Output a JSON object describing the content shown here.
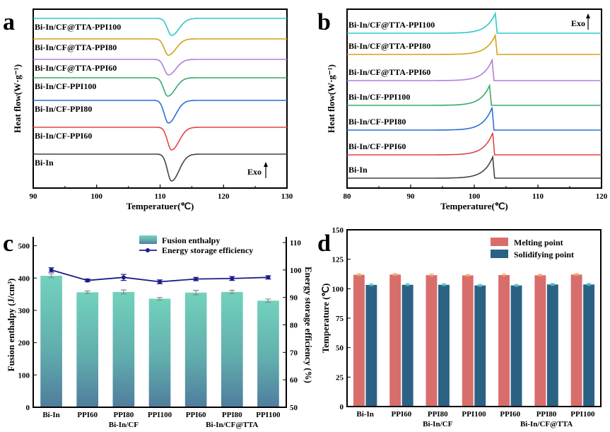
{
  "chart_data": [
    {
      "type": "line",
      "panel": "a",
      "title": "",
      "xlabel": "Temperatuer(℃)",
      "ylabel": "Heat flow(W·g⁻¹)",
      "xlim": [
        90,
        130
      ],
      "xticks": [
        "90",
        "100",
        "110",
        "120",
        "130"
      ],
      "annotation": "Exo",
      "series": [
        {
          "name": "Bi-In/CF@TTA-PPI100",
          "color": "#2ec8c8",
          "peak_T": 111.8
        },
        {
          "name": "Bi-In/CF@TTA-PPI80",
          "color": "#d4a21a",
          "peak_T": 111.3
        },
        {
          "name": "Bi-In/CF@TTA-PPI60",
          "color": "#b07ee0",
          "peak_T": 111.3
        },
        {
          "name": "Bi-In/CF-PPI100",
          "color": "#3aa86a",
          "peak_T": 111.2
        },
        {
          "name": "Bi-In/CF-PPI80",
          "color": "#2a6fd8",
          "peak_T": 111.3
        },
        {
          "name": "Bi-In/CF-PPI60",
          "color": "#e04444",
          "peak_T": 111.8
        },
        {
          "name": "Bi-In",
          "color": "#444444",
          "peak_T": 111.8
        }
      ]
    },
    {
      "type": "line",
      "panel": "b",
      "title": "",
      "xlabel": "Temperature(℃)",
      "ylabel": "Heat flow(W·g⁻¹)",
      "xlim": [
        80,
        120
      ],
      "xticks": [
        "80",
        "90",
        "100",
        "110",
        "120"
      ],
      "annotation": "Exo",
      "series": [
        {
          "name": "Bi-In/CF@TTA-PPI100",
          "color": "#2ec8c8",
          "peak_T": 103.3
        },
        {
          "name": "Bi-In/CF@TTA-PPI80",
          "color": "#d4a21a",
          "peak_T": 103.3
        },
        {
          "name": "Bi-In/CF@TTA-PPI60",
          "color": "#b07ee0",
          "peak_T": 102.8
        },
        {
          "name": "Bi-In/CF-PPI100",
          "color": "#3aa86a",
          "peak_T": 102.4
        },
        {
          "name": "Bi-In/CF-PPI80",
          "color": "#2a6fd8",
          "peak_T": 102.8
        },
        {
          "name": "Bi-In/CF-PPI60",
          "color": "#e04444",
          "peak_T": 102.9
        },
        {
          "name": "Bi-In",
          "color": "#444444",
          "peak_T": 102.9
        }
      ]
    },
    {
      "type": "bar",
      "panel": "c",
      "categories": [
        "Bi-In",
        "PPI60",
        "PPI80",
        "PPI100",
        "PPI60",
        "PPI80",
        "PPI100"
      ],
      "groups": [
        {
          "label": "Bi-In/CF",
          "center_index": 2
        },
        {
          "label": "Bi-In/CF@TTA",
          "center_index": 5
        }
      ],
      "ylabel": "Fusion enthalpy (J/cm³)",
      "y2label": "Energy storage efficiency (%)",
      "ylim": [
        0,
        510
      ],
      "yticks": [
        "0",
        "100",
        "200",
        "300",
        "400",
        "500"
      ],
      "y2lim": [
        50,
        110
      ],
      "y2ticks": [
        "50",
        "60",
        "70",
        "80",
        "90",
        "100",
        "110"
      ],
      "series": [
        {
          "name": "Fusion enthalpy",
          "type": "bar",
          "values": [
            407,
            356,
            357,
            336,
            355,
            357,
            330
          ],
          "errors": [
            6,
            4,
            6,
            4,
            7,
            5,
            5
          ]
        },
        {
          "name": "Energy storage efficiency",
          "type": "line",
          "color": "#1c1c8a",
          "values": [
            100.0,
            96.2,
            97.3,
            95.7,
            96.7,
            96.9,
            97.3
          ],
          "errors": [
            0.8,
            0.5,
            1.1,
            0.7,
            0.6,
            0.7,
            0.6
          ]
        }
      ]
    },
    {
      "type": "bar",
      "panel": "d",
      "categories": [
        "Bi-In",
        "PPI60",
        "PPI80",
        "PPI100",
        "PPI60",
        "PPI80",
        "PPI100"
      ],
      "groups": [
        {
          "label": "Bi-In/CF",
          "center_index": 2
        },
        {
          "label": "Bi-In/CF@TTA",
          "center_index": 5
        }
      ],
      "ylabel": "Temperature (℃)",
      "ylim": [
        0,
        150
      ],
      "yticks": [
        "0",
        "25",
        "50",
        "75",
        "100",
        "125",
        "150"
      ],
      "legend": "top-right",
      "series": [
        {
          "name": "Melting point",
          "color": "#d86e6c",
          "values": [
            111.8,
            112.0,
            111.5,
            111.3,
            111.6,
            111.4,
            112.0
          ]
        },
        {
          "name": "Solidifying point",
          "color": "#2b6284",
          "values": [
            103.2,
            103.3,
            103.3,
            102.8,
            102.8,
            103.6,
            103.6
          ]
        }
      ]
    }
  ],
  "panel_labels": [
    "a",
    "b",
    "c",
    "d"
  ]
}
